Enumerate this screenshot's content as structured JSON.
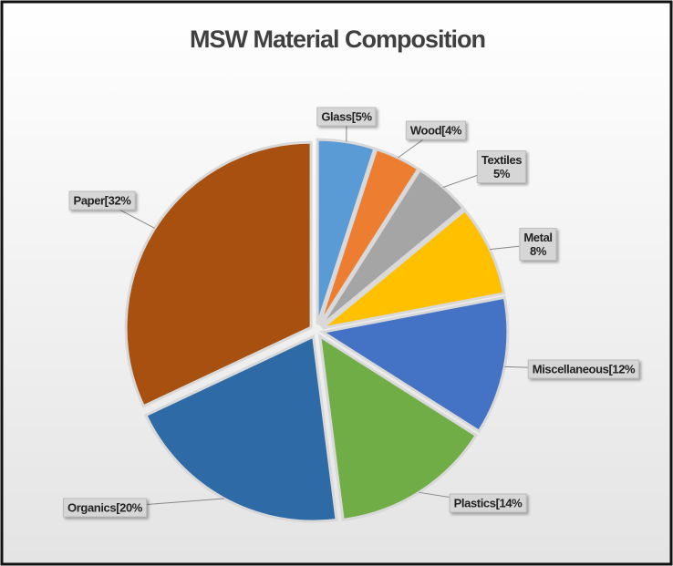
{
  "chart_data": {
    "type": "pie",
    "title": "MSW Material Composition",
    "values": [
      5,
      4,
      5,
      8,
      12,
      14,
      20,
      32
    ],
    "value_labels": [
      "Glass[5%",
      "Wood[4%",
      "Textiles\n5%",
      "Metal\n8%",
      "Miscellaneous[12%",
      "Plastics[14%",
      "Organics[20%",
      "Paper[32%"
    ],
    "colors": [
      "#5b9bd5",
      "#ed7d31",
      "#a5a5a5",
      "#ffc000",
      "#4472c4",
      "#70ad47",
      "#2e6aa6",
      "#a8500f"
    ]
  }
}
